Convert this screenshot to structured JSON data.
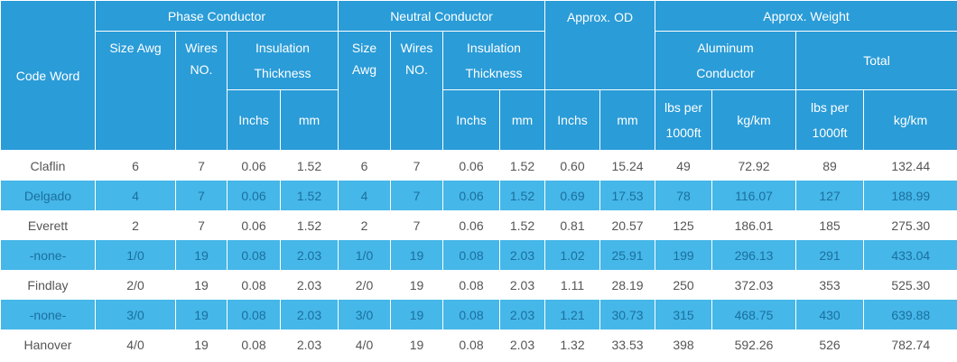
{
  "header": {
    "code_word": "Code Word",
    "phase_conductor": "Phase Conductor",
    "neutral_conductor": "Neutral Conductor",
    "approx_od": "Approx. OD",
    "approx_weight": "Approx. Weight",
    "size_awg": "Size Awg",
    "size": "Size",
    "awg": "Awg",
    "wires": "Wires",
    "no": "NO.",
    "insulation": "Insulation",
    "thickness": "Thickness",
    "aluminum": "Aluminum",
    "conductor": "Conductor",
    "total": "Total",
    "inchs": "Inchs",
    "mm": "mm",
    "lbs_per": "lbs per",
    "ft1000": "1000ft",
    "kgkm": "kg/km"
  },
  "rows": [
    [
      "Claflin",
      "6",
      "7",
      "0.06",
      "1.52",
      "6",
      "7",
      "0.06",
      "1.52",
      "0.60",
      "15.24",
      "49",
      "72.92",
      "89",
      "132.44"
    ],
    [
      "Delgado",
      "4",
      "7",
      "0.06",
      "1.52",
      "4",
      "7",
      "0.06",
      "1.52",
      "0.69",
      "17.53",
      "78",
      "116.07",
      "127",
      "188.99"
    ],
    [
      "Everett",
      "2",
      "7",
      "0.06",
      "1.52",
      "2",
      "7",
      "0.06",
      "1.52",
      "0.81",
      "20.57",
      "125",
      "186.01",
      "185",
      "275.30"
    ],
    [
      "-none-",
      "1/0",
      "19",
      "0.08",
      "2.03",
      "1/0",
      "19",
      "0.08",
      "2.03",
      "1.02",
      "25.91",
      "199",
      "296.13",
      "291",
      "433.04"
    ],
    [
      "Findlay",
      "2/0",
      "19",
      "0.08",
      "2.03",
      "2/0",
      "19",
      "0.08",
      "2.03",
      "1.11",
      "28.19",
      "250",
      "372.03",
      "353",
      "525.30"
    ],
    [
      "-none-",
      "3/0",
      "19",
      "0.08",
      "2.03",
      "3/0",
      "19",
      "0.08",
      "2.03",
      "1.21",
      "30.73",
      "315",
      "468.75",
      "430",
      "639.88"
    ],
    [
      "Hanover",
      "4/0",
      "19",
      "0.08",
      "2.03",
      "4/0",
      "19",
      "0.08",
      "2.03",
      "1.32",
      "33.53",
      "398",
      "592.26",
      "526",
      "782.74"
    ]
  ]
}
